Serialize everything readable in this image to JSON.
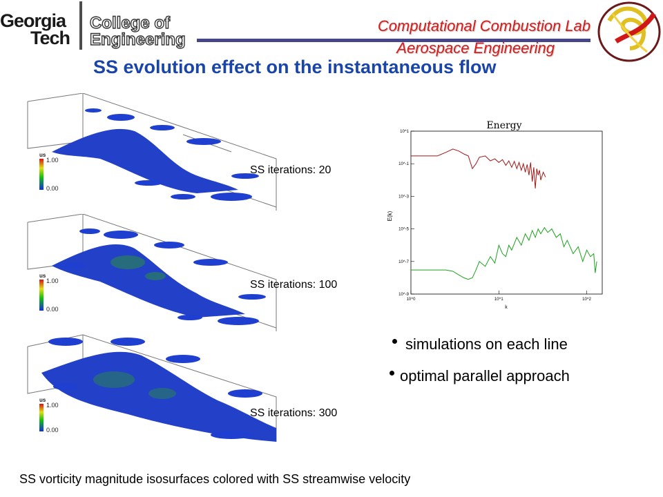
{
  "header": {
    "logo_line1": "Georgia",
    "logo_line2": "Tech",
    "college_line1": "College of",
    "college_line2": "Engineering",
    "lab_line1": "Computational Combustion Lab",
    "lab_line2": "Aerospace Engineering"
  },
  "title": "SS evolution effect on the instantaneous flow",
  "panels": [
    {
      "label": "SS iterations: 20",
      "legend_title": "us",
      "legend_max": "1.00",
      "legend_min": "0.00"
    },
    {
      "label": "SS iterations: 100",
      "legend_title": "us",
      "legend_max": "1.00",
      "legend_min": "0.00"
    },
    {
      "label": "SS iterations: 300",
      "legend_title": "us",
      "legend_max": "1.00",
      "legend_min": "0.00"
    }
  ],
  "bullets": [
    "simulations on each line",
    "optimal parallel approach"
  ],
  "caption": "SS vorticity magnitude isosurfaces colored with SS streamwise velocity",
  "chart_data": {
    "type": "line",
    "title": "Energy",
    "xlabel": "k",
    "ylabel": "E(k)",
    "x_scale": "log",
    "y_scale": "log",
    "x_ticks": [
      "10^0",
      "10^1",
      "10^2"
    ],
    "y_ticks": [
      "10^1",
      "10^-1",
      "10^-3",
      "10^-5",
      "10^-7",
      "10^-9"
    ],
    "xlim": [
      1,
      150
    ],
    "ylim": [
      1e-09,
      10
    ],
    "series": [
      {
        "color": "#a31515",
        "x": [
          1,
          1.5,
          2,
          2.5,
          3,
          3.5,
          4,
          4.5,
          5,
          5.5,
          6,
          7,
          8,
          9,
          10,
          11,
          12,
          13,
          14,
          15,
          16,
          17,
          18,
          19,
          20,
          21,
          22,
          23,
          24,
          25,
          26,
          27,
          28,
          29,
          30,
          32,
          34
        ],
        "y": [
          0.3,
          0.3,
          0.3,
          0.5,
          0.8,
          0.6,
          0.4,
          0.3,
          0.05,
          0.1,
          0.25,
          0.3,
          0.15,
          0.2,
          0.12,
          0.18,
          0.08,
          0.15,
          0.06,
          0.14,
          0.05,
          0.12,
          0.04,
          0.1,
          0.03,
          0.09,
          0.02,
          0.12,
          0.008,
          0.06,
          0.003,
          0.05,
          0.02,
          0.04,
          0.01,
          0.03,
          0.015
        ]
      },
      {
        "color": "#1aa31a",
        "x": [
          1,
          1.5,
          2,
          2.5,
          3,
          3.5,
          4,
          4.5,
          5,
          5.5,
          6,
          7,
          8,
          9,
          10,
          11,
          12,
          13,
          14,
          16,
          18,
          20,
          22,
          24,
          26,
          28,
          30,
          33,
          36,
          40,
          45,
          50,
          55,
          60,
          70,
          80,
          90,
          100,
          110,
          120,
          125,
          130
        ],
        "y": [
          3e-08,
          3e-08,
          3e-08,
          3e-08,
          2.5e-08,
          1.5e-08,
          1e-08,
          8e-09,
          1e-08,
          3e-08,
          1e-07,
          5e-08,
          2e-07,
          8e-08,
          1e-06,
          3e-07,
          2e-07,
          1e-06,
          5e-07,
          3e-06,
          1e-06,
          5e-06,
          2e-06,
          8e-06,
          3e-06,
          1e-05,
          5e-06,
          1.2e-05,
          6e-06,
          1e-05,
          3e-06,
          5e-06,
          8e-07,
          2e-06,
          3e-07,
          8e-07,
          1e-07,
          5e-07,
          2e-07,
          3e-07,
          2e-08,
          1e-07
        ]
      }
    ]
  }
}
